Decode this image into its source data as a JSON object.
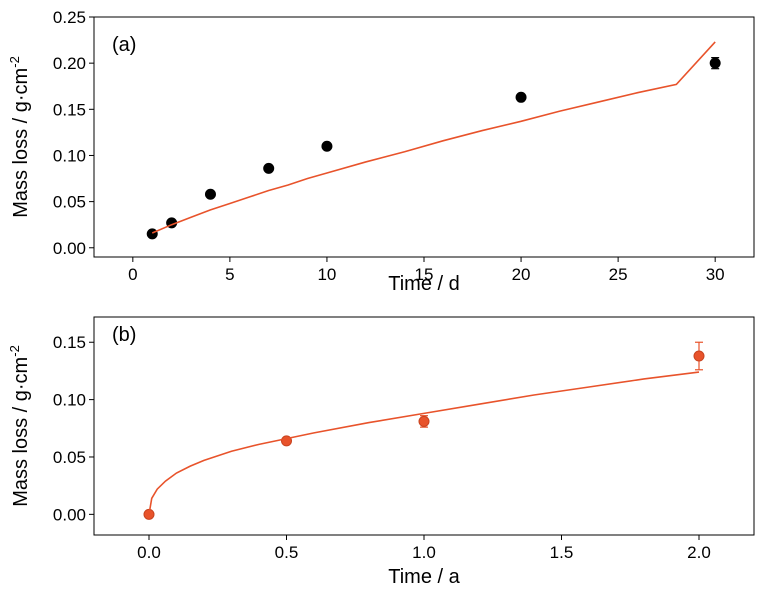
{
  "chart_data": [
    {
      "type": "scatter",
      "panel_label": "(a)",
      "xlabel": "Time / d",
      "ylabel_main": "Mass loss / g·cm",
      "ylabel_sup": "-2",
      "xlim": [
        -2,
        32
      ],
      "ylim": [
        -0.01,
        0.25
      ],
      "xticks": [
        0,
        5,
        10,
        15,
        20,
        25,
        30
      ],
      "xtick_labels": [
        "0",
        "5",
        "10",
        "15",
        "20",
        "25",
        "30"
      ],
      "yticks": [
        0.0,
        0.05,
        0.1,
        0.15,
        0.2,
        0.25
      ],
      "ytick_labels": [
        "0.00",
        "0.05",
        "0.10",
        "0.15",
        "0.20",
        "0.25"
      ],
      "series": [
        {
          "kind": "points",
          "color": "#000000",
          "x": [
            1,
            2,
            4,
            7,
            10,
            20,
            30
          ],
          "y": [
            0.015,
            0.027,
            0.058,
            0.086,
            0.11,
            0.163,
            0.2
          ],
          "err": [
            0.002,
            0.002,
            0.002,
            0.003,
            0.003,
            0.003,
            0.006
          ]
        },
        {
          "kind": "fit-line",
          "color": "#e8532b",
          "x": [
            1,
            2,
            3,
            4,
            5,
            6,
            7,
            8,
            9,
            10,
            12,
            14,
            16,
            18,
            20,
            22,
            24,
            26,
            28,
            30
          ],
          "y": [
            0.016,
            0.025,
            0.033,
            0.041,
            0.048,
            0.055,
            0.062,
            0.068,
            0.075,
            0.081,
            0.093,
            0.104,
            0.116,
            0.127,
            0.137,
            0.148,
            0.158,
            0.168,
            0.177,
            0.223
          ]
        }
      ]
    },
    {
      "type": "scatter",
      "panel_label": "(b)",
      "xlabel": "Time / a",
      "ylabel_main": "Mass loss / g·cm",
      "ylabel_sup": "-2",
      "xlim": [
        -0.2,
        2.2
      ],
      "ylim": [
        -0.018,
        0.172
      ],
      "xticks": [
        0.0,
        0.5,
        1.0,
        1.5,
        2.0
      ],
      "xtick_labels": [
        "0.0",
        "0.5",
        "1.0",
        "1.5",
        "2.0"
      ],
      "yticks": [
        0.0,
        0.05,
        0.1,
        0.15
      ],
      "ytick_labels": [
        "0.00",
        "0.05",
        "0.10",
        "0.15"
      ],
      "series": [
        {
          "kind": "points",
          "color": "#e8532b",
          "x": [
            0.0,
            0.5,
            1.0,
            2.0
          ],
          "y": [
            0.0,
            0.064,
            0.081,
            0.138
          ],
          "err": [
            0.0,
            0.002,
            0.005,
            0.012
          ]
        },
        {
          "kind": "fit-line",
          "color": "#e8532b",
          "x": [
            0.0,
            0.01,
            0.03,
            0.06,
            0.1,
            0.15,
            0.2,
            0.3,
            0.4,
            0.5,
            0.6,
            0.8,
            1.0,
            1.2,
            1.4,
            1.6,
            1.8,
            2.0
          ],
          "y": [
            0.0,
            0.014,
            0.022,
            0.029,
            0.036,
            0.042,
            0.047,
            0.055,
            0.061,
            0.066,
            0.071,
            0.08,
            0.088,
            0.096,
            0.104,
            0.111,
            0.118,
            0.124
          ]
        }
      ]
    }
  ]
}
